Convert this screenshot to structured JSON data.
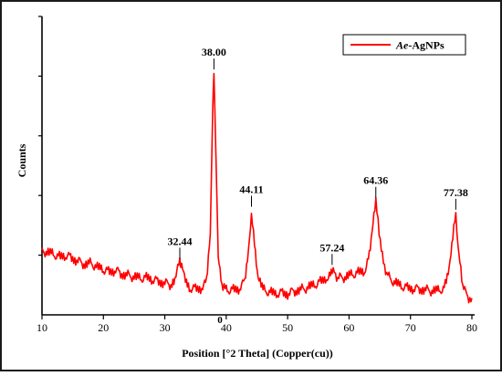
{
  "chart_data": {
    "type": "line",
    "title": "",
    "xlabel": "Position [°2 Theta] (Copper(cu))",
    "ylabel": "Counts",
    "xlim": [
      10,
      80
    ],
    "ylim": [
      0,
      100
    ],
    "xticks": [
      10,
      20,
      30,
      40,
      50,
      60,
      70,
      80
    ],
    "y_origin_label": "0",
    "legend": {
      "position": "top-right",
      "entries": [
        {
          "italic": "Ae",
          "text": "-AgNPs"
        }
      ]
    },
    "grid": false,
    "colors": {
      "series": "#ff0000",
      "axes": "#000000",
      "frame": "#1a1a1a"
    },
    "series": [
      {
        "name": "Ae-AgNPs",
        "x": [
          10,
          11,
          12,
          13,
          14,
          15,
          16,
          17,
          18,
          19,
          20,
          21,
          22,
          23,
          24,
          25,
          26,
          27,
          28,
          29,
          30,
          31,
          31.8,
          32.44,
          33.2,
          34,
          35,
          36,
          36.8,
          37.4,
          37.8,
          38.0,
          38.3,
          38.7,
          39.3,
          40,
          41,
          42,
          43,
          43.6,
          44.11,
          44.6,
          45.2,
          46,
          47,
          48,
          49,
          50,
          51,
          52,
          53,
          54,
          55,
          56,
          56.8,
          57.24,
          57.8,
          58.5,
          59.5,
          60.5,
          61.5,
          62.5,
          63.3,
          63.9,
          64.36,
          64.9,
          65.6,
          66.5,
          67.5,
          68.5,
          69.5,
          70.5,
          71.5,
          72.5,
          73.5,
          74.5,
          75.5,
          76.3,
          76.9,
          77.38,
          77.9,
          78.5,
          79,
          79.5,
          80
        ],
        "values": [
          21.5,
          21.0,
          20.2,
          19.4,
          19.9,
          18.9,
          17.8,
          16.9,
          17.3,
          16.0,
          15.2,
          14.4,
          14.9,
          13.6,
          13.2,
          12.8,
          12.3,
          12.5,
          11.8,
          11.2,
          10.6,
          10.1,
          12.9,
          17.6,
          12.4,
          9.0,
          8.8,
          8.9,
          11.0,
          26.0,
          70.0,
          81.0,
          54.0,
          21.0,
          10.0,
          8.5,
          8.4,
          8.6,
          11.0,
          20.0,
          35.0,
          24.0,
          12.0,
          8.5,
          7.7,
          7.1,
          7.4,
          7.0,
          7.9,
          8.3,
          9.0,
          9.8,
          10.7,
          12.0,
          13.3,
          15.5,
          13.2,
          12.3,
          12.8,
          13.6,
          14.2,
          14.6,
          20.0,
          30.0,
          38.0,
          28.0,
          17.0,
          12.5,
          10.8,
          9.7,
          9.1,
          8.7,
          8.6,
          8.3,
          8.1,
          8.2,
          9.0,
          14.5,
          26.0,
          34.0,
          20.0,
          10.0,
          7.0,
          5.8,
          5.6
        ]
      }
    ],
    "peak_labels": [
      {
        "x": 32.44,
        "label": "32.44"
      },
      {
        "x": 38.0,
        "label": "38.00"
      },
      {
        "x": 44.11,
        "label": "44.11"
      },
      {
        "x": 57.24,
        "label": "57.24"
      },
      {
        "x": 64.36,
        "label": "64.36"
      },
      {
        "x": 77.38,
        "label": "77.38"
      }
    ]
  }
}
